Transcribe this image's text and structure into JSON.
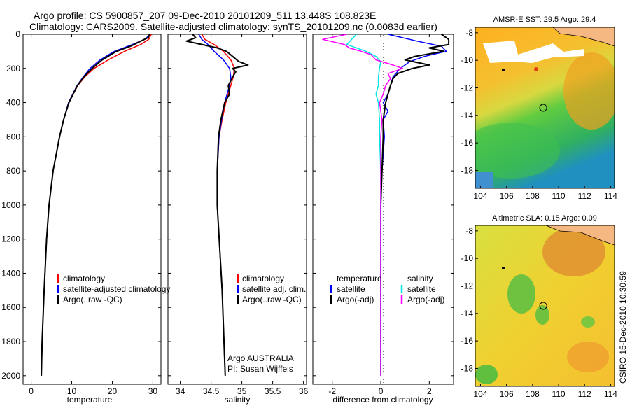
{
  "header": {
    "line1": "Argo profile: CS 5900857_207 09-Dec-2010 20101209_511 13.448S 108.823E",
    "line2": "Climatology: CARS2009. Satellite-adjusted climatology: synTS_20101209.nc (0.0083d earlier)"
  },
  "side_text": "CSIRO 15-Dec-2010 10:30:59",
  "colors": {
    "red": "#ff0000",
    "blue": "#0000ff",
    "black": "#000000",
    "cyan": "#00e6e6",
    "magenta": "#ff00ff"
  },
  "chart_data": [
    {
      "type": "line",
      "id": "temperature",
      "xlabel": "temperature",
      "ylabel": "",
      "xlim": [
        -2,
        32
      ],
      "ylim": [
        2050,
        0
      ],
      "xticks": [
        0,
        10,
        20,
        30
      ],
      "yticks": [
        0,
        200,
        400,
        600,
        800,
        1000,
        1200,
        1400,
        1600,
        1800,
        2000
      ],
      "legend": [
        "climatology",
        "satellite-adjusted climatology",
        "Argo(..raw -QC)"
      ],
      "series": [
        {
          "name": "climatology",
          "color": "red",
          "depth": [
            0,
            30,
            60,
            100,
            150,
            200,
            250,
            300,
            400,
            500,
            600,
            800,
            1000,
            1200,
            1500,
            1800,
            2000
          ],
          "values": [
            29.6,
            29.0,
            27.0,
            23.0,
            19.0,
            15.5,
            13.2,
            11.5,
            9.3,
            8.0,
            7.0,
            5.4,
            4.4,
            3.8,
            3.2,
            2.7,
            2.5
          ]
        },
        {
          "name": "satellite-adjusted climatology",
          "color": "blue",
          "depth": [
            0,
            30,
            60,
            100,
            150,
            200,
            250,
            300,
            400,
            500,
            600,
            800,
            1000,
            1200,
            1500,
            1800,
            2000
          ],
          "values": [
            29.4,
            28.0,
            25.0,
            20.5,
            17.0,
            14.5,
            12.8,
            11.3,
            9.2,
            8.0,
            7.0,
            5.4,
            4.4,
            3.8,
            3.2,
            2.7,
            2.5
          ]
        },
        {
          "name": "Argo(..raw -QC)",
          "color": "black",
          "depth": [
            0,
            20,
            40,
            70,
            100,
            150,
            200,
            250,
            300,
            400,
            500,
            600,
            800,
            1000,
            1200,
            1500,
            1800,
            2000
          ],
          "values": [
            29.2,
            28.8,
            27.0,
            24.5,
            21.0,
            17.5,
            15.0,
            13.0,
            11.4,
            9.3,
            8.0,
            7.0,
            5.4,
            4.4,
            3.8,
            3.2,
            2.7,
            2.5
          ]
        }
      ]
    },
    {
      "type": "line",
      "id": "salinity",
      "xlabel": "salinity",
      "ylabel": "",
      "xlim": [
        33.8,
        36.05
      ],
      "ylim": [
        2050,
        0
      ],
      "xticks": [
        34,
        34.5,
        35,
        35.5,
        36
      ],
      "yticks": [
        0,
        200,
        400,
        600,
        800,
        1000,
        1200,
        1400,
        1600,
        1800,
        2000
      ],
      "legend": [
        "climatology",
        "satellite adj. clim.",
        "Argo(..raw -QC)"
      ],
      "annotations": [
        "Argo AUSTRALIA",
        "PI: Susan Wijffels"
      ],
      "series": [
        {
          "name": "climatology",
          "color": "red",
          "depth": [
            0,
            30,
            60,
            100,
            150,
            200,
            250,
            300,
            350,
            400,
            500,
            600,
            800,
            1000,
            1500,
            2000
          ],
          "values": [
            34.35,
            34.4,
            34.55,
            34.7,
            34.82,
            34.88,
            34.86,
            34.82,
            34.78,
            34.74,
            34.68,
            34.63,
            34.6,
            34.6,
            34.68,
            34.73
          ]
        },
        {
          "name": "satellite adj. clim.",
          "color": "blue",
          "depth": [
            0,
            30,
            60,
            100,
            150,
            200,
            250,
            300,
            350,
            400,
            500,
            600,
            800,
            1000,
            1500,
            2000
          ],
          "values": [
            34.3,
            34.35,
            34.45,
            34.55,
            34.7,
            34.8,
            34.82,
            34.8,
            34.76,
            34.72,
            34.67,
            34.63,
            34.6,
            34.6,
            34.68,
            34.73
          ]
        },
        {
          "name": "Argo(..raw -QC)",
          "color": "black",
          "depth": [
            0,
            20,
            40,
            60,
            80,
            100,
            130,
            160,
            180,
            200,
            220,
            250,
            300,
            350,
            400,
            500,
            600,
            800,
            1000,
            1500,
            2000
          ],
          "values": [
            34.2,
            34.25,
            34.1,
            34.35,
            34.6,
            34.75,
            34.85,
            34.95,
            35.1,
            34.85,
            34.9,
            34.85,
            34.78,
            34.8,
            34.72,
            34.66,
            34.62,
            34.6,
            34.6,
            34.68,
            34.73
          ]
        }
      ]
    },
    {
      "type": "line",
      "id": "difference",
      "xlabel": "difference from climatology",
      "ylabel": "",
      "xlim": [
        -2.8,
        3.0
      ],
      "ylim": [
        2050,
        0
      ],
      "xticks": [
        -2,
        0,
        2
      ],
      "yticks": [
        0,
        200,
        400,
        600,
        800,
        1000,
        1200,
        1400,
        1600,
        1800,
        2000
      ],
      "legend_left": [
        "temperature",
        "satellite",
        "Argo(-adj)"
      ],
      "legend_right": [
        "salinity",
        "satellite",
        "Argo(-adj)"
      ],
      "series": [
        {
          "name": "temperature satellite",
          "color": "blue",
          "depth": [
            0,
            40,
            70,
            100,
            130,
            160,
            200,
            250,
            300,
            350,
            400,
            450,
            500,
            600,
            800,
            1000,
            1500,
            2000
          ],
          "values": [
            0.3,
            1.5,
            2.5,
            2.7,
            1.8,
            1.2,
            0.8,
            0.5,
            0.4,
            0.3,
            0.1,
            0.3,
            0.1,
            0.15,
            0.05,
            0.0,
            0.0,
            0.0
          ]
        },
        {
          "name": "temperature Argo(-adj)",
          "color": "black",
          "depth": [
            0,
            30,
            60,
            80,
            100,
            130,
            150,
            180,
            200,
            230,
            260,
            300,
            350,
            400,
            500,
            600,
            800,
            1000,
            1500,
            2000
          ],
          "values": [
            2.5,
            2.8,
            2.8,
            2.0,
            2.6,
            1.4,
            1.0,
            2.0,
            1.3,
            0.7,
            0.5,
            0.4,
            0.3,
            0.2,
            0.1,
            0.1,
            0.05,
            0.0,
            0.0,
            0.0
          ]
        },
        {
          "name": "salinity satellite",
          "color": "cyan",
          "depth": [
            0,
            30,
            60,
            100,
            130,
            160,
            200,
            250,
            300,
            350,
            400,
            500,
            600,
            800,
            1000,
            1500,
            2000
          ],
          "values": [
            -1.0,
            -1.2,
            -1.4,
            -0.6,
            -0.2,
            0.0,
            -0.05,
            -0.1,
            -0.1,
            -0.2,
            -0.1,
            -0.05,
            -0.05,
            0.0,
            0.0,
            0.0,
            0.0
          ]
        },
        {
          "name": "salinity Argo(-adj)",
          "color": "magenta",
          "depth": [
            0,
            30,
            60,
            80,
            100,
            120,
            150,
            180,
            200,
            230,
            260,
            300,
            350,
            400,
            500,
            600,
            800,
            1000,
            1500,
            2000
          ],
          "values": [
            -1.4,
            -2.4,
            -1.5,
            -1.3,
            -0.8,
            -0.4,
            -0.2,
            0.5,
            0.9,
            0.3,
            0.4,
            0.2,
            0.1,
            -0.05,
            0.05,
            0.0,
            0.0,
            0.0,
            0.0,
            0.0
          ]
        }
      ]
    },
    {
      "type": "heatmap",
      "id": "sst-map",
      "title": "AMSR-E SST: 29.5 Argo: 29.4",
      "xlim": [
        103.6,
        114.3
      ],
      "ylim": [
        -19.3,
        -7.6
      ],
      "xticks": [
        104,
        106,
        108,
        110,
        112,
        114
      ],
      "yticks": [
        -8,
        -10,
        -12,
        -14,
        -16,
        -18
      ],
      "float_position": {
        "lon": 108.823,
        "lat": -13.448
      }
    },
    {
      "type": "heatmap",
      "id": "sla-map",
      "title": "Altimetric SLA: 0.15 Argo: 0.09",
      "xlim": [
        103.6,
        114.3
      ],
      "ylim": [
        -19.3,
        -7.6
      ],
      "xticks": [
        104,
        106,
        108,
        110,
        112,
        114
      ],
      "yticks": [
        -8,
        -10,
        -12,
        -14,
        -16,
        -18
      ],
      "float_position": {
        "lon": 108.823,
        "lat": -13.448
      }
    }
  ]
}
